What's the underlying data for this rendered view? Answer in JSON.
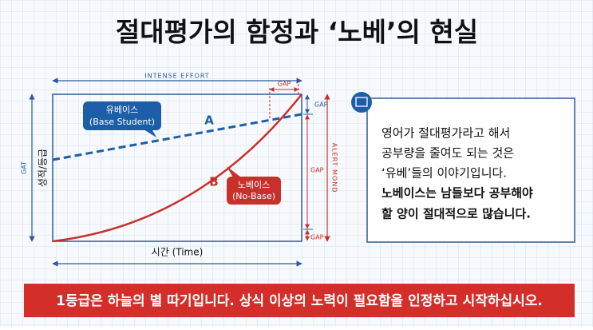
{
  "header": {
    "title": "절대평가의 함정과 ‘노베’의 현실"
  },
  "diagram": {
    "top_label": "INTENSE EFFORT",
    "top_gap": "GAP",
    "y_side_label": "GAT",
    "y_label": "성적/등급",
    "x_label": "시간 (Time)",
    "right_label": "ALERT MOND",
    "gaps": [
      "GAP",
      "GAP",
      "GAP"
    ],
    "line_a": {
      "letter": "A",
      "label": [
        "유베이스",
        "(Base Student)"
      ]
    },
    "line_b": {
      "letter": "B",
      "label": [
        "노베이스",
        "(No-Base)"
      ]
    }
  },
  "note": {
    "lines": [
      "영어가 절대평가라고 해서",
      "공부량을 줄여도 되는 것은",
      "‘유베’들의 이야기입니다."
    ],
    "bold_lines": [
      "노베이스는 남들보다 공부해야",
      "할 양이 절대적으로 많습니다."
    ]
  },
  "banner": {
    "text": "1등급은 하늘의 별 따기입니다. 상식 이상의 노력이 필요함을 인정하고 시작하십시오."
  }
}
